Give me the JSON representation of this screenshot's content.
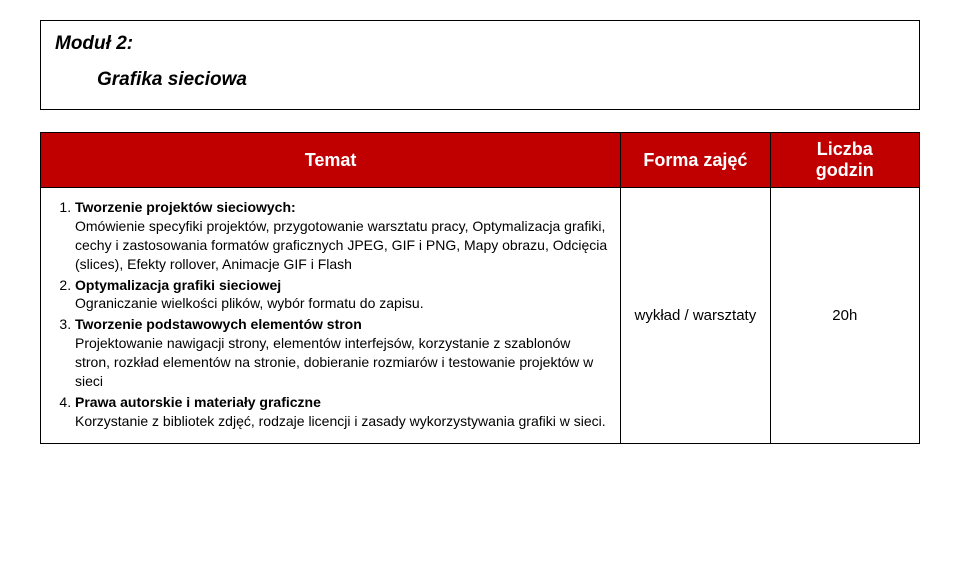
{
  "module": {
    "title": "Moduł 2:",
    "subtitle": "Grafika sieciowa"
  },
  "table": {
    "header_bg": "#c00000",
    "header_fg": "#ffffff",
    "col_widths": [
      "66%",
      "17%",
      "17%"
    ],
    "headers": {
      "c1": "Temat",
      "c2": "Forma zajęć",
      "c3_l1": "Liczba",
      "c3_l2": "godzin"
    },
    "forma": "wykład / warsztaty",
    "godzin": "20h",
    "topics": [
      {
        "title": "Tworzenie projektów sieciowych:",
        "body": "Omówienie specyfiki projektów, przygotowanie warsztatu pracy, Optymalizacja grafiki, cechy i zastosowania formatów graficznych JPEG, GIF i PNG, Mapy obrazu, Odcięcia (slices), Efekty rollover, Animacje GIF i Flash"
      },
      {
        "title": "Optymalizacja grafiki sieciowej",
        "body": "Ograniczanie wielkości plików, wybór formatu do zapisu."
      },
      {
        "title": "Tworzenie podstawowych elementów stron",
        "body": "Projektowanie nawigacji strony, elementów interfejsów, korzystanie z szablonów stron, rozkład elementów na stronie, dobieranie rozmiarów i testowanie projektów w sieci"
      },
      {
        "title": "Prawa autorskie i materiały graficzne",
        "body": "Korzystanie z bibliotek zdjęć, rodzaje licencji i zasady wykorzystywania grafiki w sieci."
      }
    ]
  }
}
